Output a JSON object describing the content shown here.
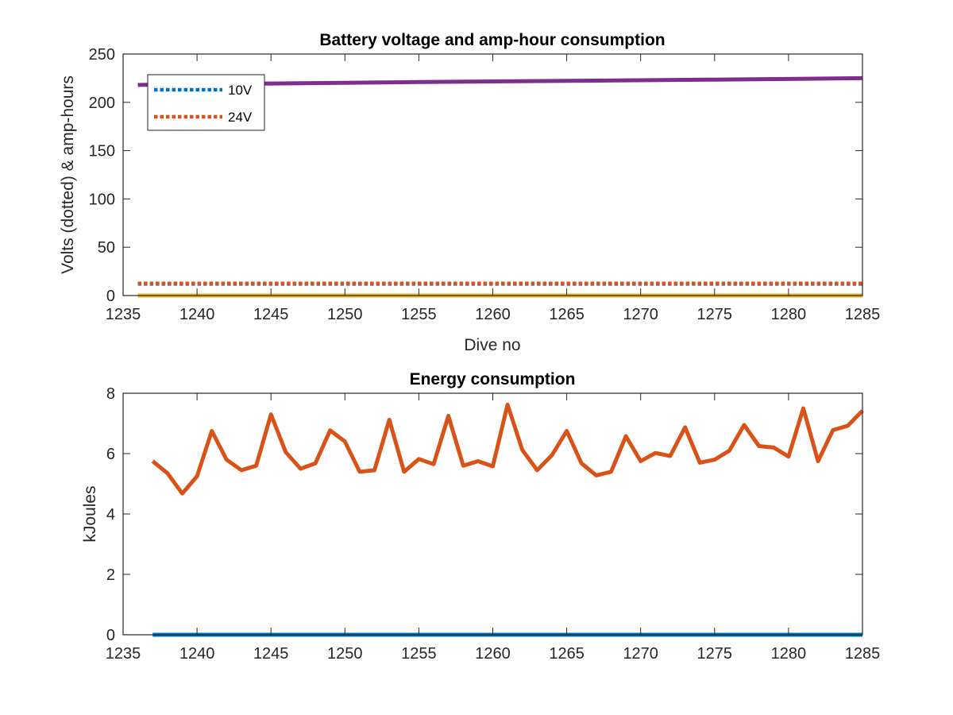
{
  "chart_data": [
    {
      "type": "line",
      "title": "Battery voltage and amp-hour consumption",
      "xlabel": "Dive no",
      "ylabel": "Volts (dotted) & amp-hours",
      "xlim": [
        1235,
        1285
      ],
      "ylim": [
        0,
        250
      ],
      "xticks": [
        "1235",
        "1240",
        "1245",
        "1250",
        "1255",
        "1260",
        "1265",
        "1270",
        "1275",
        "1280",
        "1285"
      ],
      "yticks": [
        "0",
        "50",
        "100",
        "150",
        "200",
        "250"
      ],
      "legend_placement": "top-left",
      "series": [
        {
          "name": "10V",
          "style": "dotted",
          "color": "#0072BD",
          "x": [
            1236,
            1285
          ],
          "y": [
            12,
            12
          ]
        },
        {
          "name": "24V",
          "style": "dotted",
          "color": "#D95319",
          "x": [
            1236,
            1285
          ],
          "y": [
            12.5,
            12.5
          ]
        },
        {
          "style": "solid",
          "color": "#EDB120",
          "x": [
            1236,
            1285
          ],
          "y": [
            0,
            0
          ]
        },
        {
          "style": "solid",
          "color": "#7E2F8E",
          "x": [
            1236,
            1245,
            1255,
            1265,
            1275,
            1285
          ],
          "y": [
            218,
            219.5,
            221,
            222.2,
            223.5,
            225
          ]
        }
      ]
    },
    {
      "type": "line",
      "title": "Energy consumption",
      "xlabel": "",
      "ylabel": "kJoules",
      "xlim": [
        1235,
        1285
      ],
      "ylim": [
        0,
        8
      ],
      "xticks": [
        "1235",
        "1240",
        "1245",
        "1250",
        "1255",
        "1260",
        "1265",
        "1270",
        "1275",
        "1280",
        "1285"
      ],
      "yticks": [
        "0",
        "2",
        "4",
        "6",
        "8"
      ],
      "series": [
        {
          "style": "solid",
          "color": "#0072BD",
          "x": [
            1237,
            1285
          ],
          "y": [
            0,
            0
          ]
        },
        {
          "style": "solid",
          "color": "#D95319",
          "x": [
            1237,
            1238,
            1239,
            1240,
            1241,
            1242,
            1243,
            1244,
            1245,
            1246,
            1247,
            1248,
            1249,
            1250,
            1251,
            1252,
            1253,
            1254,
            1255,
            1256,
            1257,
            1258,
            1259,
            1260,
            1261,
            1262,
            1263,
            1264,
            1265,
            1266,
            1267,
            1268,
            1269,
            1270,
            1271,
            1272,
            1273,
            1274,
            1275,
            1276,
            1277,
            1278,
            1279,
            1280,
            1281,
            1282,
            1283,
            1284,
            1285
          ],
          "y": [
            5.75,
            5.35,
            4.68,
            5.25,
            6.75,
            5.8,
            5.45,
            5.6,
            7.3,
            6.05,
            5.5,
            5.68,
            6.77,
            6.4,
            5.4,
            5.45,
            7.12,
            5.4,
            5.82,
            5.65,
            7.25,
            5.6,
            5.75,
            5.58,
            7.62,
            6.12,
            5.45,
            5.95,
            6.75,
            5.68,
            5.28,
            5.4,
            6.58,
            5.75,
            6.02,
            5.92,
            6.87,
            5.7,
            5.8,
            6.1,
            6.95,
            6.25,
            6.2,
            5.9,
            7.5,
            5.75,
            6.78,
            6.92,
            7.42
          ]
        }
      ]
    }
  ]
}
